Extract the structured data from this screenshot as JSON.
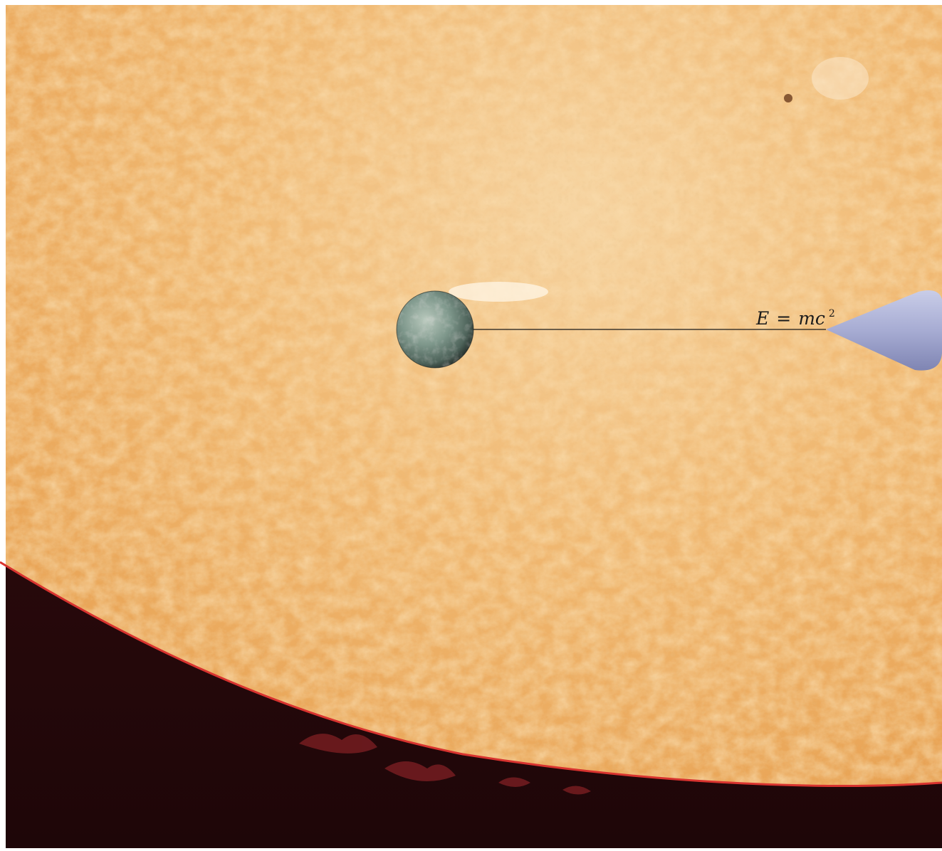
{
  "scene": {
    "formula": {
      "lhs": "E",
      "equals": "=",
      "rhs": "mc",
      "exponent": "2"
    },
    "colors": {
      "space": "#2a0a0c",
      "sun_surface": "#f0b86a",
      "sun_limb": "#d8332f",
      "planet": "#5f7d73",
      "cone": "#a9aed6",
      "line": "#1a1a1a"
    }
  }
}
